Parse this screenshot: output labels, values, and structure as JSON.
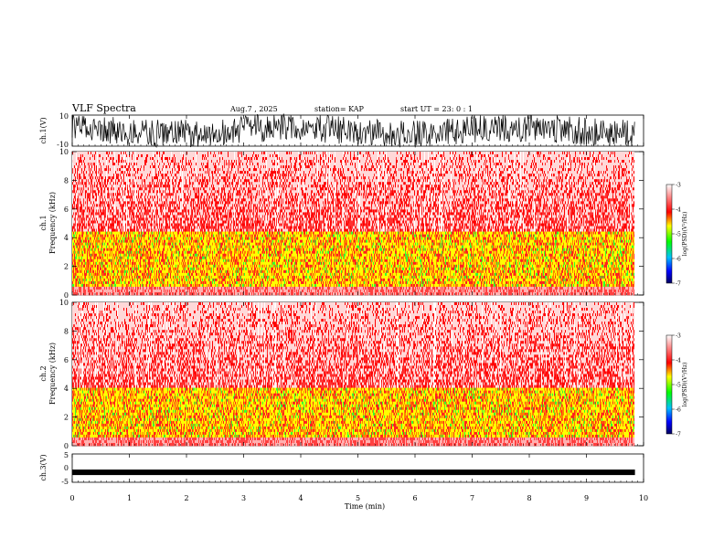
{
  "header": {
    "title": "VLF Spectra",
    "date": "Aug.7 , 2025",
    "station": "station= KAP",
    "start": "start UT = 23: 0 : 1"
  },
  "chart_data": [
    {
      "type": "line",
      "ylabel": "ch.1(V)",
      "ylim": [
        -10,
        10
      ],
      "yticks": [
        "10",
        "-10"
      ],
      "x_range": [
        0,
        9.85
      ],
      "description_values": "noisy waveform spanning roughly -8 to +10 V"
    },
    {
      "type": "heatmap",
      "ylabel": [
        "ch.1",
        "Frequency (kHz)"
      ],
      "ylim": [
        0,
        10
      ],
      "yticks": [
        "0",
        "2",
        "4",
        "6",
        "8",
        "10"
      ],
      "colorbar": {
        "label": "log(PSD)(V²/Hz)",
        "range": [
          -7,
          -3
        ],
        "ticks": [
          "-3",
          "-4",
          "-5",
          "-6",
          "-7"
        ]
      },
      "band_kHz": [
        0.5,
        4.5
      ]
    },
    {
      "type": "heatmap",
      "ylabel": [
        "ch.2",
        "Frequency (kHz)"
      ],
      "ylim": [
        0,
        10
      ],
      "yticks": [
        "0",
        "2",
        "4",
        "6",
        "8",
        "10"
      ],
      "colorbar": {
        "label": "log(PSD)(V²/Hz)",
        "range": [
          -7,
          -3
        ],
        "ticks": [
          "-3",
          "-4",
          "-5",
          "-6",
          "-7"
        ]
      },
      "band_kHz": [
        0.5,
        4.0
      ]
    },
    {
      "type": "line",
      "ylabel": "ch.3(V)",
      "ylim": [
        -5,
        5
      ],
      "yticks": [
        "5",
        "0",
        "-5"
      ],
      "x_range": [
        0,
        9.85
      ],
      "level": -1.5
    }
  ],
  "xaxis": {
    "label": "Time (min)",
    "ticks": [
      "0",
      "1",
      "2",
      "3",
      "4",
      "5",
      "6",
      "7",
      "8",
      "9",
      "10"
    ],
    "range": [
      0,
      10
    ]
  },
  "colors": {
    "spec_low": "#ff3030",
    "spec_mid": "#ffff00",
    "spec_green": "#33ff33",
    "trace": "#000000"
  }
}
